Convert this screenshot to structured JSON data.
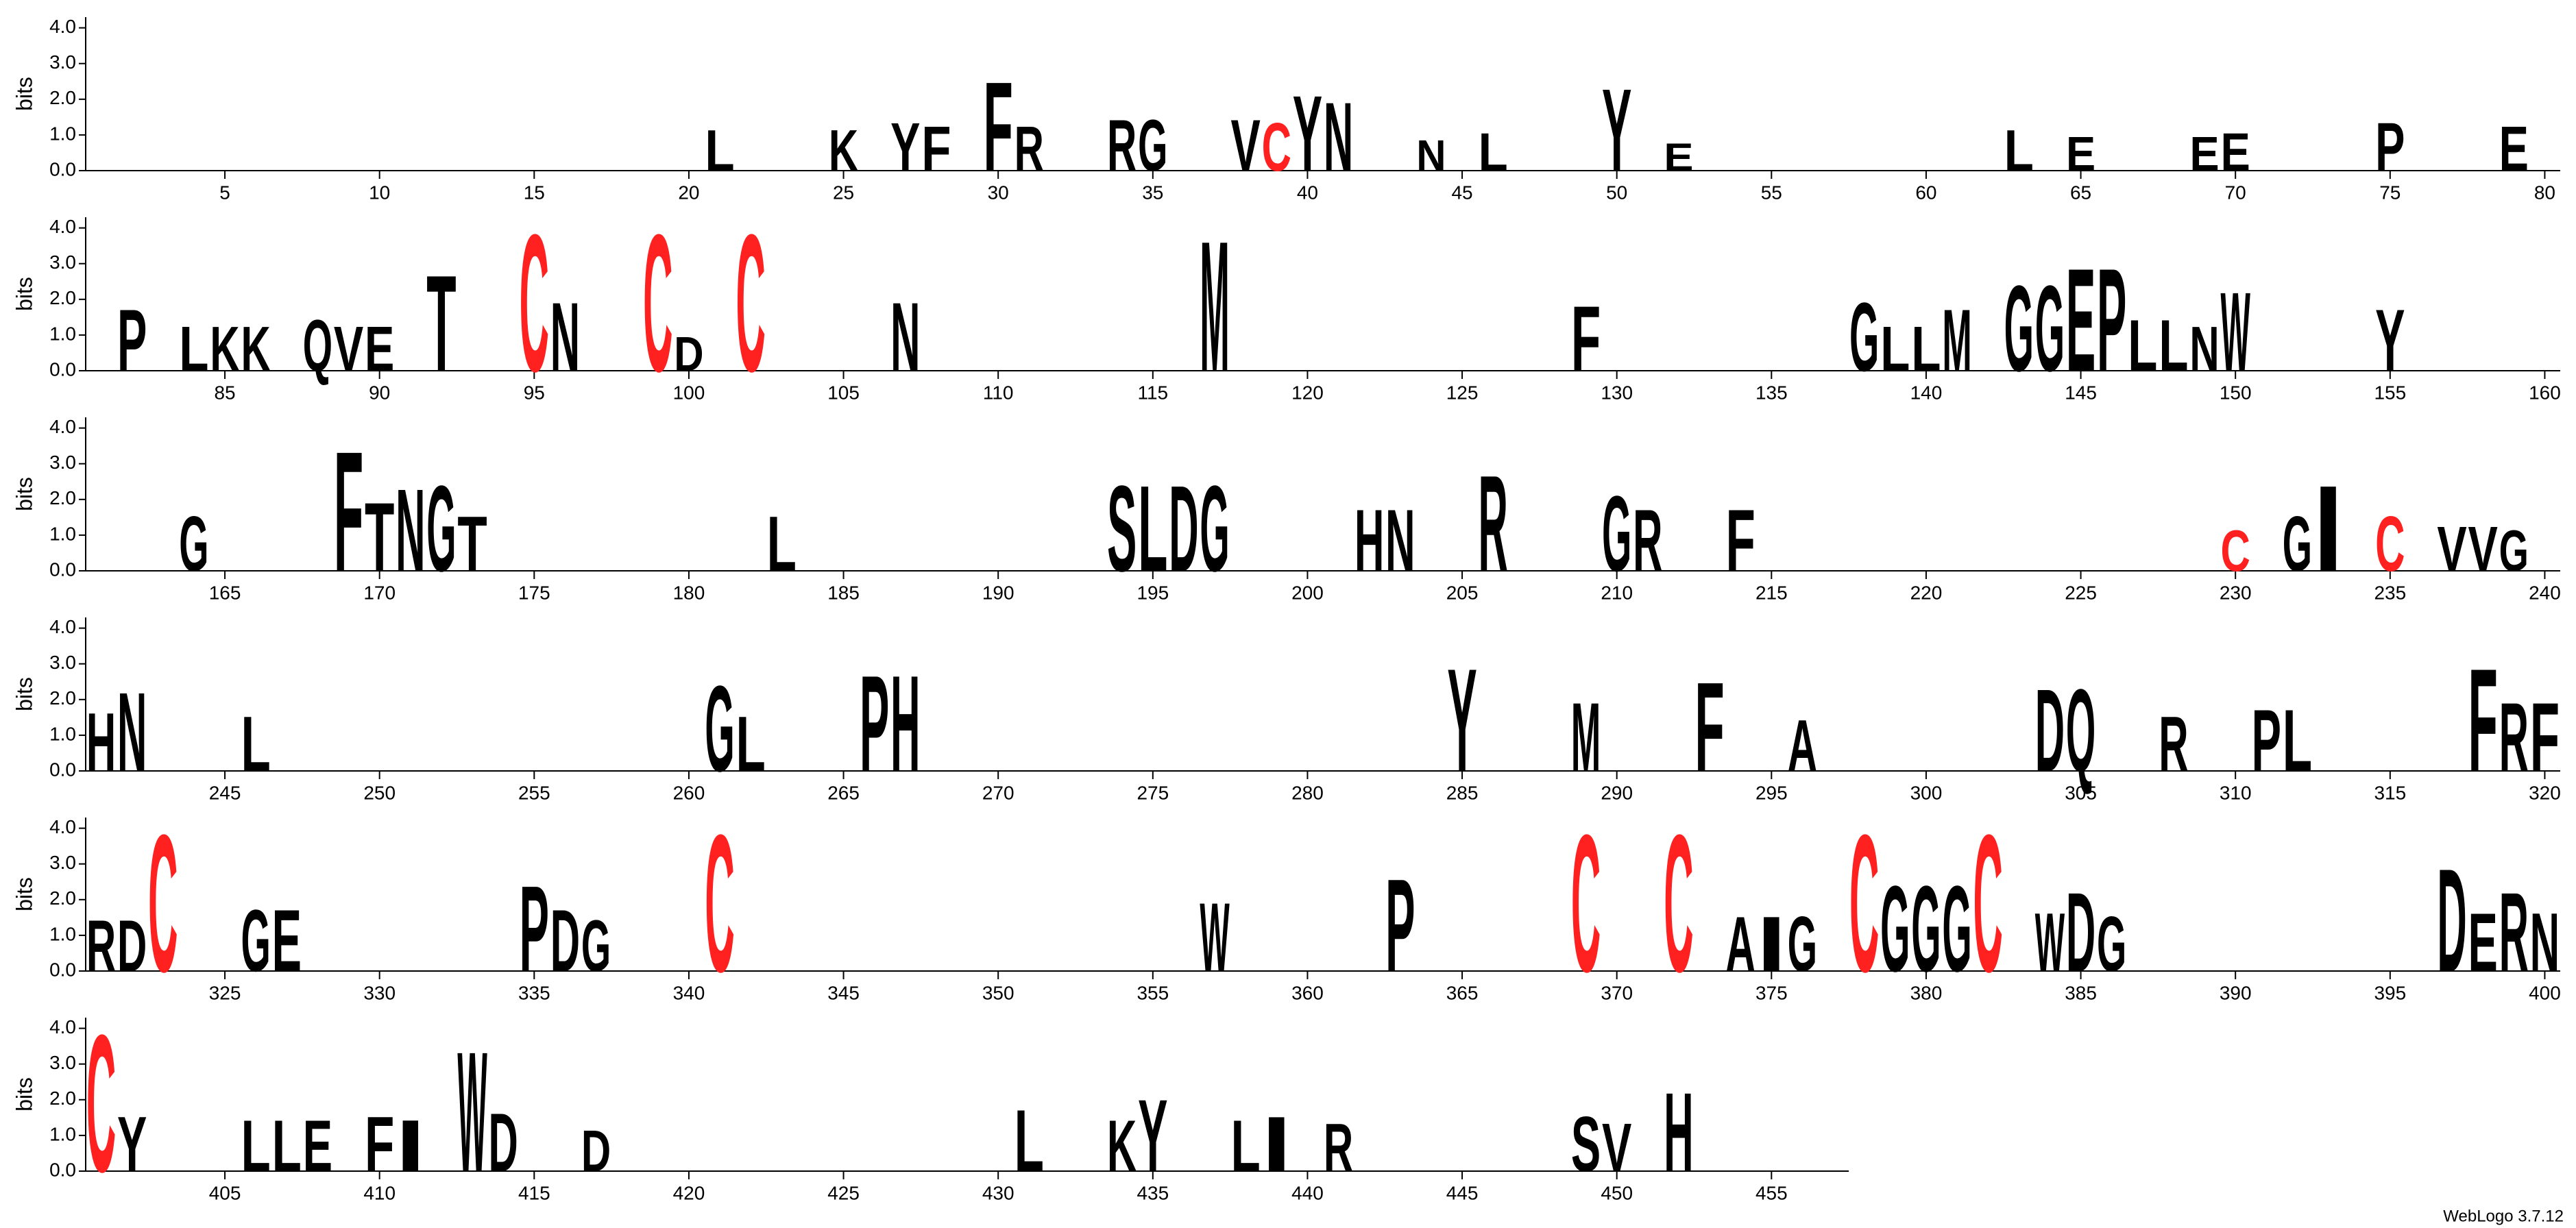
{
  "chart_data": [
    {
      "type": "logo",
      "ylabel": "bits",
      "xlim": [
        0.5,
        80.5
      ],
      "ylim": [
        0,
        4.3
      ],
      "yticks": [
        {
          "value": 0,
          "label": "0.0"
        },
        {
          "value": 1,
          "label": "1.0"
        },
        {
          "value": 2,
          "label": "2.0"
        },
        {
          "value": 3,
          "label": "3.0"
        },
        {
          "value": 4,
          "label": "4.0"
        }
      ],
      "xticks": [
        5,
        10,
        15,
        20,
        25,
        30,
        35,
        40,
        45,
        50,
        55,
        60,
        65,
        70,
        75,
        80
      ],
      "color": "#000000",
      "letter_colors": {
        "C": "#ff2020"
      },
      "positions": [
        21,
        25,
        27,
        28,
        30,
        31,
        34,
        35,
        38,
        39,
        40,
        41,
        44,
        46,
        50,
        52,
        63,
        65,
        69,
        70,
        75,
        79
      ],
      "letters": [
        "L",
        "K",
        "Y",
        "F",
        "F",
        "R",
        "R",
        "G",
        "V",
        "C",
        "Y",
        "N",
        "N",
        "L",
        "Y",
        "E",
        "L",
        "E",
        "E",
        "E",
        "P",
        "E"
      ],
      "values": [
        1.2,
        1.2,
        1.4,
        1.3,
        2.6,
        1.3,
        1.5,
        1.5,
        1.5,
        1.4,
        2.2,
        2.0,
        0.9,
        1.1,
        2.4,
        0.8,
        1.2,
        1.0,
        1.0,
        1.1,
        1.4,
        1.3
      ]
    },
    {
      "type": "logo",
      "ylabel": "bits",
      "xlim": [
        80.5,
        160.5
      ],
      "ylim": [
        0,
        4.3
      ],
      "yticks": [
        {
          "value": 0,
          "label": "0.0"
        },
        {
          "value": 1,
          "label": "1.0"
        },
        {
          "value": 2,
          "label": "2.0"
        },
        {
          "value": 3,
          "label": "3.0"
        },
        {
          "value": 4,
          "label": "4.0"
        }
      ],
      "xticks": [
        85,
        90,
        95,
        100,
        105,
        110,
        115,
        120,
        125,
        130,
        135,
        140,
        145,
        150,
        155,
        160
      ],
      "color": "#000000",
      "letter_colors": {
        "C": "#ff2020"
      },
      "positions": [
        82,
        84,
        85,
        86,
        88,
        89,
        90,
        92,
        95,
        96,
        99,
        100,
        102,
        107,
        117,
        129,
        138,
        139,
        140,
        141,
        143,
        144,
        145,
        146,
        147,
        148,
        149,
        150,
        155
      ],
      "letters": [
        "P",
        "L",
        "K",
        "K",
        "Q",
        "V",
        "E",
        "T",
        "C",
        "N",
        "C",
        "D",
        "C",
        "N",
        "M",
        "F",
        "G",
        "L",
        "L",
        "M",
        "G",
        "G",
        "E",
        "P",
        "L",
        "L",
        "N",
        "W",
        "Y"
      ],
      "values": [
        1.8,
        1.3,
        1.3,
        1.3,
        1.5,
        1.3,
        1.3,
        2.8,
        4.0,
        2.0,
        4.0,
        1.0,
        4.0,
        2.0,
        3.8,
        1.9,
        2.0,
        1.3,
        1.3,
        1.8,
        2.5,
        2.5,
        3.0,
        3.0,
        1.5,
        1.5,
        1.3,
        2.3,
        1.8
      ]
    },
    {
      "type": "logo",
      "ylabel": "bits",
      "xlim": [
        160.5,
        240.5
      ],
      "ylim": [
        0,
        4.3
      ],
      "yticks": [
        {
          "value": 0,
          "label": "0.0"
        },
        {
          "value": 1,
          "label": "1.0"
        },
        {
          "value": 2,
          "label": "2.0"
        },
        {
          "value": 3,
          "label": "3.0"
        },
        {
          "value": 4,
          "label": "4.0"
        }
      ],
      "xticks": [
        165,
        170,
        175,
        180,
        185,
        190,
        195,
        200,
        205,
        210,
        215,
        220,
        225,
        230,
        235,
        240
      ],
      "color": "#000000",
      "letter_colors": {
        "C": "#ff2020"
      },
      "positions": [
        164,
        169,
        170,
        171,
        172,
        173,
        183,
        194,
        195,
        196,
        197,
        202,
        203,
        206,
        210,
        211,
        214,
        230,
        232,
        233,
        235,
        237,
        238,
        239
      ],
      "letters": [
        "G",
        "F",
        "T",
        "N",
        "G",
        "T",
        "L",
        "S",
        "L",
        "D",
        "G",
        "H",
        "N",
        "R",
        "G",
        "R",
        "F",
        "C",
        "G",
        "I",
        "C",
        "V",
        "V",
        "G"
      ],
      "values": [
        1.6,
        3.5,
        2.0,
        2.4,
        2.5,
        1.6,
        1.6,
        2.5,
        2.5,
        2.5,
        2.5,
        1.8,
        1.8,
        2.8,
        2.2,
        1.8,
        1.8,
        1.2,
        1.6,
        2.5,
        1.6,
        1.3,
        1.3,
        1.2
      ]
    },
    {
      "type": "logo",
      "ylabel": "bits",
      "xlim": [
        240.5,
        320.5
      ],
      "ylim": [
        0,
        4.3
      ],
      "yticks": [
        {
          "value": 0,
          "label": "0.0"
        },
        {
          "value": 1,
          "label": "1.0"
        },
        {
          "value": 2,
          "label": "2.0"
        },
        {
          "value": 3,
          "label": "3.0"
        },
        {
          "value": 4,
          "label": "4.0"
        }
      ],
      "xticks": [
        245,
        250,
        255,
        260,
        265,
        270,
        275,
        280,
        285,
        290,
        295,
        300,
        305,
        310,
        315,
        320
      ],
      "color": "#000000",
      "letter_colors": {
        "C": "#ff2020"
      },
      "positions": [
        241,
        242,
        246,
        261,
        262,
        266,
        267,
        285,
        289,
        293,
        296,
        304,
        305,
        308,
        311,
        312,
        318,
        319,
        320
      ],
      "letters": [
        "H",
        "N",
        "L",
        "G",
        "L",
        "P",
        "H",
        "Y",
        "M",
        "F",
        "A",
        "D",
        "Q",
        "R",
        "P",
        "L",
        "F",
        "R",
        "F"
      ],
      "values": [
        1.7,
        2.3,
        1.6,
        2.5,
        1.6,
        2.8,
        2.8,
        3.0,
        2.0,
        2.6,
        1.5,
        2.4,
        2.4,
        1.6,
        1.8,
        1.8,
        3.0,
        2.0,
        2.0
      ]
    },
    {
      "type": "logo",
      "ylabel": "bits",
      "xlim": [
        320.5,
        400.5
      ],
      "ylim": [
        0,
        4.3
      ],
      "yticks": [
        {
          "value": 0,
          "label": "0.0"
        },
        {
          "value": 1,
          "label": "1.0"
        },
        {
          "value": 2,
          "label": "2.0"
        },
        {
          "value": 3,
          "label": "3.0"
        },
        {
          "value": 4,
          "label": "4.0"
        }
      ],
      "xticks": [
        325,
        330,
        335,
        340,
        345,
        350,
        355,
        360,
        365,
        370,
        375,
        380,
        385,
        390,
        395,
        400
      ],
      "color": "#000000",
      "letter_colors": {
        "C": "#ff2020"
      },
      "positions": [
        321,
        322,
        323,
        326,
        327,
        335,
        336,
        337,
        341,
        357,
        363,
        369,
        372,
        374,
        375,
        376,
        378,
        379,
        380,
        381,
        382,
        384,
        385,
        386,
        397,
        398,
        399,
        400
      ],
      "letters": [
        "R",
        "D",
        "C",
        "G",
        "E",
        "P",
        "D",
        "G",
        "C",
        "W",
        "P",
        "C",
        "C",
        "A",
        "I",
        "G",
        "C",
        "G",
        "G",
        "G",
        "C",
        "W",
        "D",
        "G",
        "D",
        "E",
        "R",
        "N"
      ],
      "values": [
        1.5,
        1.5,
        4.0,
        1.8,
        1.8,
        2.5,
        1.8,
        1.5,
        4.0,
        2.0,
        2.7,
        4.0,
        4.0,
        1.6,
        1.6,
        1.6,
        4.0,
        2.5,
        2.5,
        2.5,
        4.0,
        1.7,
        2.3,
        1.6,
        3.0,
        1.7,
        2.3,
        1.7
      ]
    },
    {
      "type": "logo",
      "ylabel": "bits",
      "xlim": [
        400.5,
        457.5
      ],
      "ylim": [
        0,
        4.3
      ],
      "yticks": [
        {
          "value": 0,
          "label": "0.0"
        },
        {
          "value": 1,
          "label": "1.0"
        },
        {
          "value": 2,
          "label": "2.0"
        },
        {
          "value": 3,
          "label": "3.0"
        },
        {
          "value": 4,
          "label": "4.0"
        }
      ],
      "xticks": [
        405,
        410,
        415,
        420,
        425,
        430,
        435,
        440,
        445,
        450,
        455
      ],
      "color": "#000000",
      "letter_colors": {
        "C": "#ff2020"
      },
      "positions": [
        401,
        402,
        406,
        407,
        408,
        410,
        411,
        413,
        414,
        417,
        431,
        434,
        435,
        438,
        439,
        441,
        449,
        450,
        452
      ],
      "letters": [
        "C",
        "Y",
        "L",
        "L",
        "E",
        "F",
        "I",
        "W",
        "D",
        "D",
        "L",
        "K",
        "Y",
        "L",
        "I",
        "R",
        "S",
        "V",
        "H"
      ],
      "values": [
        4.0,
        1.6,
        1.5,
        1.5,
        1.5,
        1.6,
        1.5,
        3.5,
        1.7,
        1.2,
        1.8,
        1.5,
        2.1,
        1.5,
        1.6,
        1.4,
        1.6,
        1.4,
        2.3
      ]
    }
  ],
  "footer": "WebLogo 3.7.12"
}
